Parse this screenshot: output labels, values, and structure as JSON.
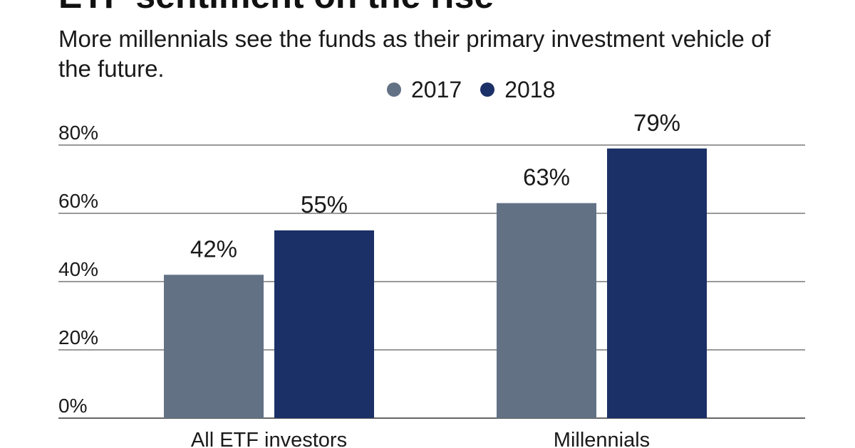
{
  "title": "ETF sentiment on the rise",
  "subtitle": "More millennials see the funds as their primary investment vehicle of the future.",
  "colors": {
    "2017": "#637185",
    "2018": "#1b3066",
    "grid": "#333333"
  },
  "chart_data": {
    "type": "bar",
    "title": "ETF sentiment on the rise",
    "subtitle": "More millennials see the funds as their primary investment vehicle of the future.",
    "categories": [
      "All ETF investors",
      "Millennials"
    ],
    "series": [
      {
        "name": "2017",
        "values": [
          42,
          63
        ],
        "labels": [
          "42%",
          "63%"
        ]
      },
      {
        "name": "2018",
        "values": [
          55,
          79
        ],
        "labels": [
          "55%",
          "79%"
        ]
      }
    ],
    "y_ticks": [
      0,
      20,
      40,
      60,
      80
    ],
    "y_tick_labels": [
      "0%",
      "20%",
      "40%",
      "60%",
      "80%"
    ],
    "ylim": [
      0,
      80
    ],
    "legend_position": "top",
    "grid": true,
    "xlabel": "",
    "ylabel": ""
  }
}
